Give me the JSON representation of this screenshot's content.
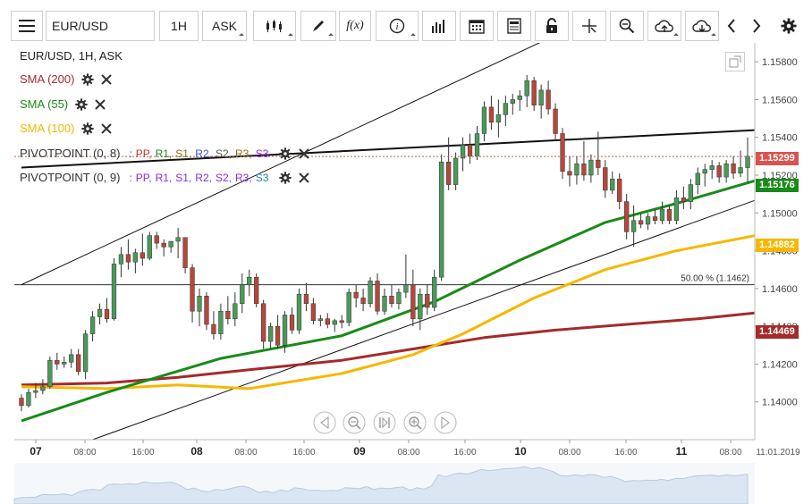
{
  "toolbar": {
    "symbol": "EUR/USD",
    "timeframe": "1H",
    "price_type": "ASK",
    "fx_label": "f(x)"
  },
  "legend": {
    "title": "EUR/USD, 1H, ASK",
    "sma200": "SMA (200)",
    "sma55": "SMA (55)",
    "sma100": "SMA (100)",
    "pivot1_label": "PIVOTPOINT (0, 8)",
    "pivot1_parts": [
      ":",
      "PP,",
      "R1,",
      "S1,",
      "R2,",
      "S2,",
      "R3,",
      "S3"
    ],
    "pivot2_label": "PIVOTPOINT (0, 9)",
    "pivot2_parts": [
      ":",
      "PP,",
      "R1,",
      "S1,",
      "R2,",
      "S2,",
      "R3,",
      "S3"
    ]
  },
  "colors": {
    "sma200": "#a52a2a",
    "sma55": "#1a8a1a",
    "sma100": "#f5b800",
    "up_candle": "#4a9a5a",
    "down_candle": "#b5473c",
    "last_price_tag": "#d9534f",
    "sma55_tag": "#1a8a1a",
    "sma100_tag": "#f5b800",
    "sma200_tag": "#a52a2a",
    "pivot1_colors": [
      "#555555",
      "#c0392b",
      "#1a8a1a",
      "#8a6d1a",
      "#3355cc",
      "#555555",
      "#8a6d1a",
      "#8a2be2"
    ],
    "pivot2_colors": [
      "#555555",
      "#8a2be2",
      "#8a2be2",
      "#8a2be2",
      "#8a2be2",
      "#8a2be2",
      "#8a2be2",
      "#1a8aaa"
    ]
  },
  "chart_data": {
    "type": "candlestick",
    "symbol": "EUR/USD",
    "interval": "1H",
    "y_axis": {
      "min": 1.138,
      "max": 1.159,
      "ticks": [
        "1.15800",
        "1.15600",
        "1.15400",
        "1.15200",
        "1.15000",
        "1.14800",
        "1.14600",
        "1.14400",
        "1.14200",
        "1.14000"
      ]
    },
    "x_axis_ticks": [
      "07",
      "08:00",
      "16:00",
      "08",
      "08:00",
      "16:00",
      "09",
      "08:00",
      "16:00",
      "10",
      "08:00",
      "16:00",
      "11",
      "08:00"
    ],
    "x_axis_date": "11.01.2019",
    "price_tags": {
      "last": "1.15299",
      "sma55": "1.15176",
      "sma100": "1.14882",
      "sma200": "1.14469"
    },
    "fib_label": "50.00 % (1.1462)",
    "fib_level": 1.1462,
    "candles": [
      [
        1.1402,
        1.1404,
        1.1395,
        1.1398
      ],
      [
        1.1398,
        1.1407,
        1.1397,
        1.1405
      ],
      [
        1.1405,
        1.141,
        1.1402,
        1.1406
      ],
      [
        1.1406,
        1.1412,
        1.1404,
        1.1408
      ],
      [
        1.1408,
        1.1424,
        1.1407,
        1.1422
      ],
      [
        1.1422,
        1.1426,
        1.1417,
        1.142
      ],
      [
        1.142,
        1.1424,
        1.1418,
        1.1421
      ],
      [
        1.1421,
        1.1428,
        1.1418,
        1.1425
      ],
      [
        1.1425,
        1.1428,
        1.1414,
        1.1416
      ],
      [
        1.1416,
        1.1438,
        1.1412,
        1.1436
      ],
      [
        1.1436,
        1.1448,
        1.1432,
        1.1445
      ],
      [
        1.1445,
        1.1452,
        1.1441,
        1.1449
      ],
      [
        1.1449,
        1.1455,
        1.1442,
        1.1444
      ],
      [
        1.1444,
        1.1476,
        1.1443,
        1.1473
      ],
      [
        1.1473,
        1.1482,
        1.1466,
        1.1478
      ],
      [
        1.1478,
        1.1486,
        1.147,
        1.1474
      ],
      [
        1.1474,
        1.1481,
        1.1468,
        1.1479
      ],
      [
        1.1479,
        1.1489,
        1.1472,
        1.1476
      ],
      [
        1.1476,
        1.149,
        1.1475,
        1.1488
      ],
      [
        1.1488,
        1.149,
        1.1481,
        1.1484
      ],
      [
        1.1484,
        1.1486,
        1.1477,
        1.1482
      ],
      [
        1.1482,
        1.1485,
        1.1479,
        1.1485
      ],
      [
        1.1485,
        1.1492,
        1.1476,
        1.1487
      ],
      [
        1.1487,
        1.1487,
        1.1468,
        1.1471
      ],
      [
        1.1471,
        1.1473,
        1.1442,
        1.1448
      ],
      [
        1.1448,
        1.146,
        1.144,
        1.1456
      ],
      [
        1.1456,
        1.1458,
        1.1438,
        1.1441
      ],
      [
        1.1441,
        1.1448,
        1.1433,
        1.1436
      ],
      [
        1.1436,
        1.1452,
        1.1433,
        1.1448
      ],
      [
        1.1448,
        1.1456,
        1.1441,
        1.1444
      ],
      [
        1.1444,
        1.1458,
        1.144,
        1.1452
      ],
      [
        1.1452,
        1.1468,
        1.1447,
        1.1462
      ],
      [
        1.1462,
        1.147,
        1.1456,
        1.1466
      ],
      [
        1.1466,
        1.1468,
        1.145,
        1.1452
      ],
      [
        1.1452,
        1.1454,
        1.1428,
        1.1432
      ],
      [
        1.1432,
        1.1442,
        1.1428,
        1.144
      ],
      [
        1.144,
        1.1446,
        1.1428,
        1.143
      ],
      [
        1.143,
        1.1448,
        1.1426,
        1.1446
      ],
      [
        1.1446,
        1.145,
        1.1436,
        1.1438
      ],
      [
        1.1438,
        1.146,
        1.1436,
        1.1457
      ],
      [
        1.1457,
        1.1463,
        1.1448,
        1.1452
      ],
      [
        1.1452,
        1.1455,
        1.1441,
        1.1443
      ],
      [
        1.1443,
        1.1446,
        1.144,
        1.1444
      ],
      [
        1.1444,
        1.1447,
        1.1439,
        1.1441
      ],
      [
        1.1441,
        1.1444,
        1.1437,
        1.1443
      ],
      [
        1.1443,
        1.1446,
        1.1439,
        1.1442
      ],
      [
        1.1442,
        1.146,
        1.144,
        1.1458
      ],
      [
        1.1458,
        1.1462,
        1.145,
        1.1455
      ],
      [
        1.1455,
        1.146,
        1.1448,
        1.1452
      ],
      [
        1.1452,
        1.1466,
        1.145,
        1.1464
      ],
      [
        1.1464,
        1.1468,
        1.1446,
        1.1448
      ],
      [
        1.1448,
        1.146,
        1.1446,
        1.1456
      ],
      [
        1.1456,
        1.1462,
        1.145,
        1.1452
      ],
      [
        1.1452,
        1.146,
        1.1449,
        1.1458
      ],
      [
        1.1458,
        1.1478,
        1.1455,
        1.1462
      ],
      [
        1.1462,
        1.147,
        1.144,
        1.1444
      ],
      [
        1.1444,
        1.146,
        1.1438,
        1.1457
      ],
      [
        1.1457,
        1.1462,
        1.1446,
        1.145
      ],
      [
        1.145,
        1.147,
        1.1448,
        1.1466
      ],
      [
        1.1466,
        1.1531,
        1.1464,
        1.1527
      ],
      [
        1.1527,
        1.154,
        1.1512,
        1.1515
      ],
      [
        1.1515,
        1.1532,
        1.1512,
        1.1529
      ],
      [
        1.1529,
        1.154,
        1.1522,
        1.1536
      ],
      [
        1.1536,
        1.1542,
        1.1526,
        1.153
      ],
      [
        1.153,
        1.1546,
        1.1528,
        1.1542
      ],
      [
        1.1542,
        1.1559,
        1.1538,
        1.1556
      ],
      [
        1.1556,
        1.1562,
        1.1544,
        1.1548
      ],
      [
        1.1548,
        1.156,
        1.154,
        1.1552
      ],
      [
        1.1552,
        1.1562,
        1.1546,
        1.1558
      ],
      [
        1.1558,
        1.1563,
        1.1552,
        1.156
      ],
      [
        1.156,
        1.1565,
        1.1554,
        1.1562
      ],
      [
        1.1562,
        1.1573,
        1.1556,
        1.157
      ],
      [
        1.157,
        1.1572,
        1.1554,
        1.1557
      ],
      [
        1.1557,
        1.1568,
        1.155,
        1.1565
      ],
      [
        1.1565,
        1.157,
        1.1552,
        1.1555
      ],
      [
        1.1555,
        1.1558,
        1.1538,
        1.1542
      ],
      [
        1.1542,
        1.1545,
        1.1518,
        1.1522
      ],
      [
        1.1522,
        1.153,
        1.1514,
        1.152
      ],
      [
        1.152,
        1.153,
        1.1515,
        1.1526
      ],
      [
        1.1526,
        1.1538,
        1.1517,
        1.152
      ],
      [
        1.152,
        1.1531,
        1.1516,
        1.1528
      ],
      [
        1.1528,
        1.1543,
        1.152,
        1.1524
      ],
      [
        1.1524,
        1.1528,
        1.1508,
        1.1512
      ],
      [
        1.1512,
        1.1522,
        1.151,
        1.1518
      ],
      [
        1.1518,
        1.1521,
        1.1502,
        1.1506
      ],
      [
        1.1506,
        1.151,
        1.1486,
        1.149
      ],
      [
        1.149,
        1.1504,
        1.1482,
        1.1496
      ],
      [
        1.1496,
        1.15,
        1.1492,
        1.1494
      ],
      [
        1.1494,
        1.15,
        1.1491,
        1.1498
      ],
      [
        1.1498,
        1.1502,
        1.1494,
        1.1496
      ],
      [
        1.1496,
        1.1506,
        1.1494,
        1.1502
      ],
      [
        1.1502,
        1.1504,
        1.1494,
        1.1496
      ],
      [
        1.1496,
        1.1512,
        1.1494,
        1.1508
      ],
      [
        1.1508,
        1.1514,
        1.1502,
        1.1506
      ],
      [
        1.1506,
        1.1518,
        1.1502,
        1.1515
      ],
      [
        1.1515,
        1.1524,
        1.151,
        1.1521
      ],
      [
        1.1521,
        1.1526,
        1.1514,
        1.1523
      ],
      [
        1.1523,
        1.1528,
        1.1518,
        1.1525
      ],
      [
        1.1525,
        1.1527,
        1.1516,
        1.1519
      ],
      [
        1.1519,
        1.1528,
        1.1516,
        1.1526
      ],
      [
        1.1526,
        1.153,
        1.1518,
        1.1521
      ],
      [
        1.1521,
        1.1533,
        1.1519,
        1.1524
      ],
      [
        1.1524,
        1.154,
        1.1516,
        1.153
      ]
    ],
    "sma55": [
      [
        0,
        1.139
      ],
      [
        12,
        1.1405
      ],
      [
        28,
        1.1423
      ],
      [
        45,
        1.1435
      ],
      [
        58,
        1.1453
      ],
      [
        70,
        1.1475
      ],
      [
        82,
        1.1495
      ],
      [
        92,
        1.1505
      ],
      [
        103,
        1.1517
      ]
    ],
    "sma100": [
      [
        0,
        1.1408
      ],
      [
        12,
        1.1407
      ],
      [
        22,
        1.1409
      ],
      [
        32,
        1.1407
      ],
      [
        45,
        1.1415
      ],
      [
        55,
        1.1425
      ],
      [
        62,
        1.1436
      ],
      [
        72,
        1.1455
      ],
      [
        82,
        1.147
      ],
      [
        92,
        1.148
      ],
      [
        103,
        1.1488
      ]
    ],
    "sma200": [
      [
        0,
        1.1409
      ],
      [
        12,
        1.141
      ],
      [
        22,
        1.1413
      ],
      [
        32,
        1.1417
      ],
      [
        45,
        1.1422
      ],
      [
        55,
        1.1428
      ],
      [
        65,
        1.1434
      ],
      [
        75,
        1.1438
      ],
      [
        85,
        1.1441
      ],
      [
        95,
        1.1444
      ],
      [
        103,
        1.1447
      ]
    ],
    "trendlines": [
      {
        "from": [
          0,
          1.1462
        ],
        "to": [
          75,
          1.1594
        ]
      },
      {
        "from": [
          10,
          1.138
        ],
        "to": [
          104,
          1.1508
        ]
      },
      {
        "from": [
          0,
          1.1524
        ],
        "to": [
          104,
          1.1544
        ]
      }
    ]
  }
}
